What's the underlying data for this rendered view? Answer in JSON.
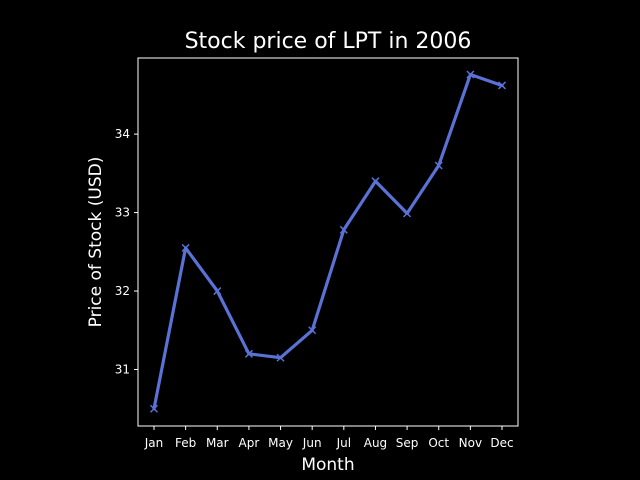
{
  "chart_data": {
    "type": "line",
    "title": "Stock price of LPT in 2006",
    "xlabel": "Month",
    "ylabel": "Price of Stock (USD)",
    "categories": [
      "Jan",
      "Feb",
      "Mar",
      "Apr",
      "May",
      "Jun",
      "Jul",
      "Aug",
      "Sep",
      "Oct",
      "Nov",
      "Dec"
    ],
    "series": [
      {
        "values": [
          30.5,
          32.55,
          32.0,
          31.2,
          31.15,
          31.5,
          32.78,
          33.4,
          32.99,
          33.6,
          34.76,
          34.62
        ],
        "color": "#5a72d6",
        "marker": "x"
      }
    ],
    "yticks": [
      31,
      32,
      33,
      34
    ],
    "ylim": [
      30.28,
      34.97
    ],
    "grid": false,
    "background": "#000000",
    "foreground": "#ffffff"
  }
}
